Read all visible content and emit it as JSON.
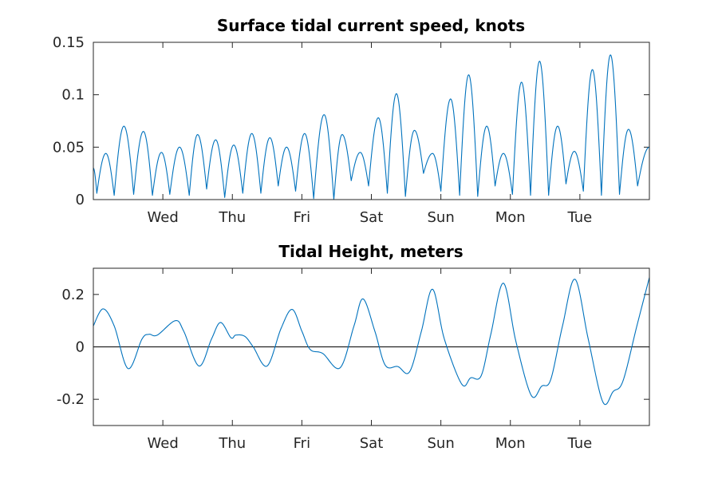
{
  "chart_data": [
    {
      "type": "line",
      "title": "Surface tidal current speed, knots",
      "xlabel": "",
      "ylabel": "",
      "x_range_days": [
        0,
        8
      ],
      "ylim": [
        0,
        0.15
      ],
      "yticks": [
        0,
        0.05,
        0.1,
        0.15
      ],
      "ytick_labels": [
        "0",
        "0.05",
        "0.1",
        "0.15"
      ],
      "xtick_labels": [
        "Wed",
        "Thu",
        "Fri",
        "Sat",
        "Sun",
        "Mon",
        "Tue"
      ],
      "grid": false,
      "zero_line": false,
      "series": [
        {
          "color": "#0072bd",
          "peaks": [
            {
              "x": 0.0,
              "y": 0.03
            },
            {
              "x": 0.18,
              "y": 0.044
            },
            {
              "x": 0.44,
              "y": 0.07
            },
            {
              "x": 0.72,
              "y": 0.065
            },
            {
              "x": 0.98,
              "y": 0.045
            },
            {
              "x": 1.24,
              "y": 0.05
            },
            {
              "x": 1.5,
              "y": 0.062
            },
            {
              "x": 1.76,
              "y": 0.057
            },
            {
              "x": 2.02,
              "y": 0.052
            },
            {
              "x": 2.28,
              "y": 0.063
            },
            {
              "x": 2.54,
              "y": 0.059
            },
            {
              "x": 2.78,
              "y": 0.05
            },
            {
              "x": 3.04,
              "y": 0.063
            },
            {
              "x": 3.32,
              "y": 0.081
            },
            {
              "x": 3.58,
              "y": 0.062
            },
            {
              "x": 3.84,
              "y": 0.045
            },
            {
              "x": 4.1,
              "y": 0.078
            },
            {
              "x": 4.36,
              "y": 0.101
            },
            {
              "x": 4.62,
              "y": 0.066
            },
            {
              "x": 4.88,
              "y": 0.044
            },
            {
              "x": 5.14,
              "y": 0.096
            },
            {
              "x": 5.4,
              "y": 0.119
            },
            {
              "x": 5.66,
              "y": 0.07
            },
            {
              "x": 5.9,
              "y": 0.044
            },
            {
              "x": 6.16,
              "y": 0.112
            },
            {
              "x": 6.42,
              "y": 0.132
            },
            {
              "x": 6.68,
              "y": 0.07
            },
            {
              "x": 6.92,
              "y": 0.046
            },
            {
              "x": 7.18,
              "y": 0.124
            },
            {
              "x": 7.44,
              "y": 0.138
            },
            {
              "x": 7.7,
              "y": 0.067
            },
            {
              "x": 8.0,
              "y": 0.05
            }
          ],
          "troughs": [
            {
              "x": 0.05,
              "y": 0.006
            },
            {
              "x": 0.3,
              "y": 0.004
            },
            {
              "x": 0.58,
              "y": 0.005
            },
            {
              "x": 0.85,
              "y": 0.004
            },
            {
              "x": 1.1,
              "y": 0.005
            },
            {
              "x": 1.38,
              "y": 0.004
            },
            {
              "x": 1.63,
              "y": 0.01
            },
            {
              "x": 1.89,
              "y": 0.002
            },
            {
              "x": 2.15,
              "y": 0.006
            },
            {
              "x": 2.41,
              "y": 0.006
            },
            {
              "x": 2.66,
              "y": 0.013
            },
            {
              "x": 2.91,
              "y": 0.008
            },
            {
              "x": 3.17,
              "y": 0.001
            },
            {
              "x": 3.46,
              "y": 0.0
            },
            {
              "x": 3.71,
              "y": 0.018
            },
            {
              "x": 3.96,
              "y": 0.013
            },
            {
              "x": 4.23,
              "y": 0.006
            },
            {
              "x": 4.49,
              "y": 0.003
            },
            {
              "x": 4.75,
              "y": 0.025
            },
            {
              "x": 5.0,
              "y": 0.008
            },
            {
              "x": 5.27,
              "y": 0.004
            },
            {
              "x": 5.53,
              "y": 0.003
            },
            {
              "x": 5.78,
              "y": 0.013
            },
            {
              "x": 6.03,
              "y": 0.005
            },
            {
              "x": 6.29,
              "y": 0.004
            },
            {
              "x": 6.55,
              "y": 0.004
            },
            {
              "x": 6.8,
              "y": 0.015
            },
            {
              "x": 7.05,
              "y": 0.008
            },
            {
              "x": 7.31,
              "y": 0.004
            },
            {
              "x": 7.57,
              "y": 0.005
            },
            {
              "x": 7.83,
              "y": 0.013
            }
          ]
        }
      ]
    },
    {
      "type": "line",
      "title": "Tidal Height, meters",
      "xlabel": "",
      "ylabel": "",
      "x_range_days": [
        0,
        8
      ],
      "ylim": [
        -0.3,
        0.3
      ],
      "yticks": [
        -0.2,
        0,
        0.2
      ],
      "ytick_labels": [
        "-0.2",
        "0",
        "0.2"
      ],
      "xtick_labels": [
        "Wed",
        "Thu",
        "Fri",
        "Sat",
        "Sun",
        "Mon",
        "Tue"
      ],
      "grid": false,
      "zero_line": true,
      "series": [
        {
          "color": "#0072bd",
          "points": [
            {
              "x": 0.0,
              "y": 0.08
            },
            {
              "x": 0.14,
              "y": 0.145
            },
            {
              "x": 0.3,
              "y": 0.08
            },
            {
              "x": 0.5,
              "y": -0.083
            },
            {
              "x": 0.7,
              "y": 0.03
            },
            {
              "x": 0.8,
              "y": 0.048
            },
            {
              "x": 0.92,
              "y": 0.045
            },
            {
              "x": 1.18,
              "y": 0.1
            },
            {
              "x": 1.3,
              "y": 0.06
            },
            {
              "x": 1.52,
              "y": -0.073
            },
            {
              "x": 1.7,
              "y": 0.03
            },
            {
              "x": 1.83,
              "y": 0.093
            },
            {
              "x": 1.98,
              "y": 0.035
            },
            {
              "x": 2.05,
              "y": 0.045
            },
            {
              "x": 2.18,
              "y": 0.04
            },
            {
              "x": 2.3,
              "y": 0.0
            },
            {
              "x": 2.5,
              "y": -0.073
            },
            {
              "x": 2.7,
              "y": 0.07
            },
            {
              "x": 2.86,
              "y": 0.143
            },
            {
              "x": 3.0,
              "y": 0.06
            },
            {
              "x": 3.12,
              "y": -0.01
            },
            {
              "x": 3.3,
              "y": -0.025
            },
            {
              "x": 3.55,
              "y": -0.08
            },
            {
              "x": 3.75,
              "y": 0.08
            },
            {
              "x": 3.88,
              "y": 0.183
            },
            {
              "x": 4.05,
              "y": 0.06
            },
            {
              "x": 4.2,
              "y": -0.07
            },
            {
              "x": 4.38,
              "y": -0.075
            },
            {
              "x": 4.55,
              "y": -0.095
            },
            {
              "x": 4.72,
              "y": 0.06
            },
            {
              "x": 4.88,
              "y": 0.22
            },
            {
              "x": 5.05,
              "y": 0.03
            },
            {
              "x": 5.3,
              "y": -0.142
            },
            {
              "x": 5.43,
              "y": -0.118
            },
            {
              "x": 5.58,
              "y": -0.11
            },
            {
              "x": 5.72,
              "y": 0.05
            },
            {
              "x": 5.9,
              "y": 0.243
            },
            {
              "x": 6.08,
              "y": 0.02
            },
            {
              "x": 6.3,
              "y": -0.185
            },
            {
              "x": 6.45,
              "y": -0.15
            },
            {
              "x": 6.58,
              "y": -0.125
            },
            {
              "x": 6.75,
              "y": 0.08
            },
            {
              "x": 6.93,
              "y": 0.258
            },
            {
              "x": 7.12,
              "y": 0.03
            },
            {
              "x": 7.33,
              "y": -0.21
            },
            {
              "x": 7.48,
              "y": -0.17
            },
            {
              "x": 7.62,
              "y": -0.13
            },
            {
              "x": 7.82,
              "y": 0.08
            },
            {
              "x": 8.0,
              "y": 0.265
            }
          ]
        }
      ]
    }
  ]
}
